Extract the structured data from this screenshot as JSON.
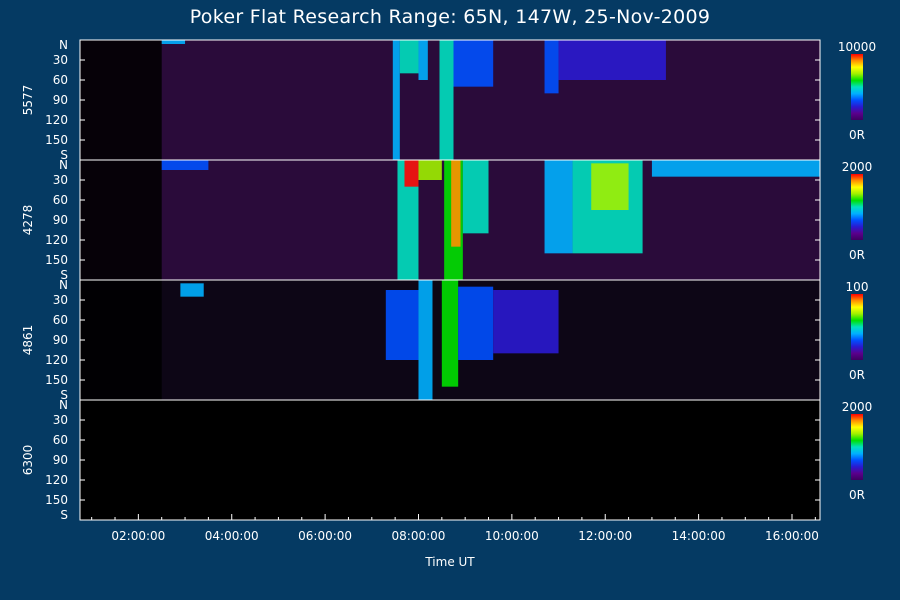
{
  "chart_data": {
    "type": "heatmap",
    "title": "Poker Flat Research Range: 65N, 147W, 25-Nov-2009",
    "xlabel": "Time UT",
    "x_ticks": [
      "02:00:00",
      "04:00:00",
      "06:00:00",
      "08:00:00",
      "10:00:00",
      "12:00:00",
      "14:00:00",
      "16:00:00"
    ],
    "x_tick_hours": [
      2,
      4,
      6,
      8,
      10,
      12,
      14,
      16
    ],
    "xlim_hours": [
      0.75,
      16.6
    ],
    "y_ticks": [
      "N",
      "30",
      "60",
      "90",
      "120",
      "150",
      "S"
    ],
    "y_tick_values": [
      0,
      30,
      60,
      90,
      120,
      150,
      180
    ],
    "ylim": [
      0,
      180
    ],
    "colormap": [
      "#3d0060",
      "#5a008c",
      "#2a1ad0",
      "#0050ff",
      "#00b0ff",
      "#00e0c0",
      "#00e000",
      "#a0f000",
      "#ffff00",
      "#ff9000",
      "#ff0000"
    ],
    "panels": [
      {
        "name": "5577",
        "colorbar_max": "10000",
        "colorbar_min": "0R",
        "background": "#2a0b3a",
        "events": [
          {
            "x0": 7.45,
            "x1": 7.6,
            "y0": 0,
            "y1": 180,
            "level": 0.35
          },
          {
            "x0": 7.6,
            "x1": 8.0,
            "y0": 0,
            "y1": 50,
            "level": 0.5
          },
          {
            "x0": 8.0,
            "x1": 8.2,
            "y0": 0,
            "y1": 60,
            "level": 0.4
          },
          {
            "x0": 8.45,
            "x1": 8.75,
            "y0": 0,
            "y1": 180,
            "level": 0.45
          },
          {
            "x0": 8.75,
            "x1": 9.6,
            "y0": 0,
            "y1": 70,
            "level": 0.3
          },
          {
            "x0": 2.5,
            "x1": 3.0,
            "y0": 0,
            "y1": 6,
            "level": 0.35
          },
          {
            "x0": 10.7,
            "x1": 11.0,
            "y0": 0,
            "y1": 80,
            "level": 0.25
          },
          {
            "x0": 11.0,
            "x1": 13.3,
            "y0": 0,
            "y1": 60,
            "level": 0.18
          }
        ]
      },
      {
        "name": "4278",
        "colorbar_max": "2000",
        "colorbar_min": "0R",
        "background": "#2a0b3a",
        "events": [
          {
            "x0": 7.55,
            "x1": 8.0,
            "y0": 0,
            "y1": 180,
            "level": 0.5
          },
          {
            "x0": 7.7,
            "x1": 8.0,
            "y0": 0,
            "y1": 40,
            "level": 0.95
          },
          {
            "x0": 8.0,
            "x1": 8.5,
            "y0": 0,
            "y1": 30,
            "level": 0.7
          },
          {
            "x0": 8.55,
            "x1": 8.95,
            "y0": 0,
            "y1": 180,
            "level": 0.6
          },
          {
            "x0": 8.7,
            "x1": 8.9,
            "y0": 0,
            "y1": 130,
            "level": 0.85
          },
          {
            "x0": 8.95,
            "x1": 9.5,
            "y0": 0,
            "y1": 110,
            "level": 0.45
          },
          {
            "x0": 10.7,
            "x1": 11.3,
            "y0": 0,
            "y1": 140,
            "level": 0.4
          },
          {
            "x0": 11.3,
            "x1": 12.8,
            "y0": 0,
            "y1": 140,
            "level": 0.45
          },
          {
            "x0": 11.7,
            "x1": 12.5,
            "y0": 5,
            "y1": 75,
            "level": 0.7
          },
          {
            "x0": 13.0,
            "x1": 16.6,
            "y0": 0,
            "y1": 25,
            "level": 0.35
          },
          {
            "x0": 2.5,
            "x1": 3.5,
            "y0": 0,
            "y1": 15,
            "level": 0.3
          }
        ]
      },
      {
        "name": "4861",
        "colorbar_max": "100",
        "colorbar_min": "0R",
        "background": "#0d0616",
        "events": [
          {
            "x0": 2.9,
            "x1": 3.4,
            "y0": 5,
            "y1": 25,
            "level": 0.35
          },
          {
            "x0": 7.3,
            "x1": 8.0,
            "y0": 15,
            "y1": 120,
            "level": 0.3
          },
          {
            "x0": 8.0,
            "x1": 8.3,
            "y0": 0,
            "y1": 180,
            "level": 0.4
          },
          {
            "x0": 8.5,
            "x1": 8.85,
            "y0": 0,
            "y1": 160,
            "level": 0.55
          },
          {
            "x0": 8.85,
            "x1": 9.6,
            "y0": 10,
            "y1": 120,
            "level": 0.3
          },
          {
            "x0": 9.6,
            "x1": 11.0,
            "y0": 15,
            "y1": 110,
            "level": 0.18
          }
        ]
      },
      {
        "name": "6300",
        "colorbar_max": "2000",
        "colorbar_min": "0R",
        "background": "#000000",
        "events": []
      }
    ]
  }
}
